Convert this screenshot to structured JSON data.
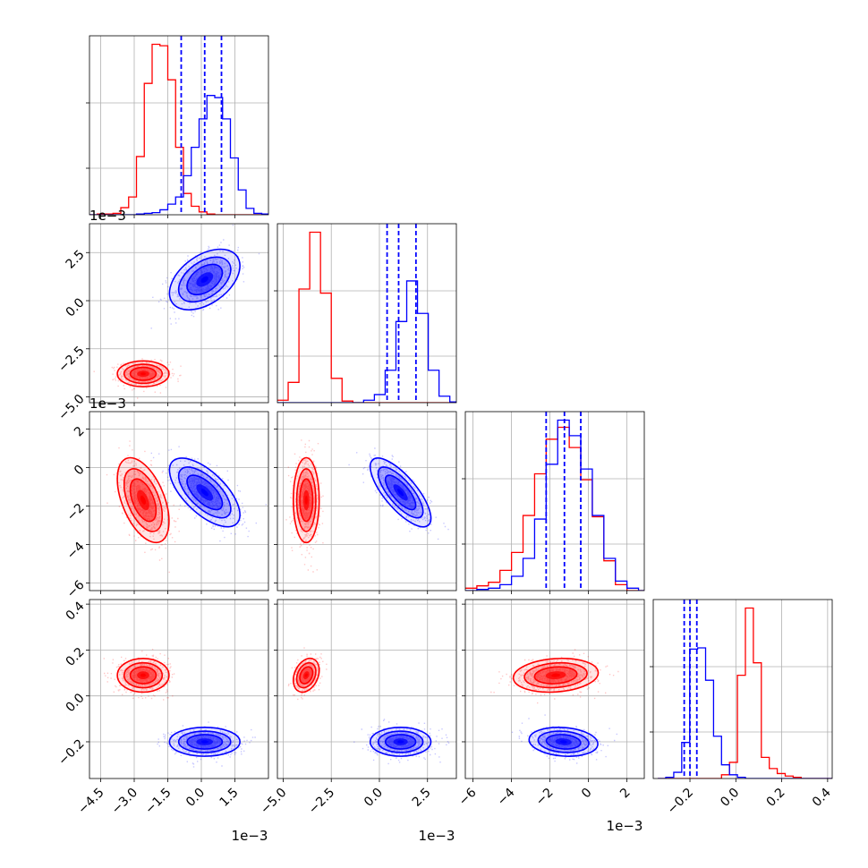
{
  "figure": {
    "type": "corner",
    "offset_texts": {
      "x0": "1e−3",
      "x1": "1e−3",
      "x2": "1e−3",
      "y1": "1e−3",
      "y2": "1e−3"
    },
    "grid": true,
    "marker_line_style": "dashed"
  },
  "colors": {
    "a": "#ff0000",
    "b": "#0000ff"
  },
  "chart_data": {
    "type": "corner",
    "parameters": [
      {
        "index": 0,
        "range": [
          -5.0,
          3.0
        ],
        "ticks": [
          -4.5,
          -3.0,
          -1.5,
          0.0,
          1.5
        ],
        "tick_labels": [
          "−4.5",
          "−3.0",
          "−1.5",
          "0.0",
          "1.5"
        ],
        "offset": "1e−3"
      },
      {
        "index": 1,
        "range": [
          -5.3,
          4.0
        ],
        "ticks": [
          -5.0,
          -2.5,
          0.0,
          2.5
        ],
        "tick_labels": [
          "−5.0",
          "−2.5",
          "0.0",
          "2.5"
        ],
        "offset": "1e−3"
      },
      {
        "index": 2,
        "range": [
          -6.4,
          2.9
        ],
        "ticks": [
          -6,
          -4,
          -2,
          0,
          2
        ],
        "tick_labels": [
          "−6",
          "−4",
          "−2",
          "0",
          "2"
        ],
        "offset": "1e−3"
      },
      {
        "index": 3,
        "range": [
          -0.36,
          0.42
        ],
        "ticks": [
          -0.2,
          0.0,
          0.2,
          0.4
        ],
        "tick_labels": [
          "−0.2",
          "0.0",
          "0.2",
          "0.4"
        ]
      }
    ],
    "series": [
      {
        "color": "#ff0000",
        "mean": [
          -2.6,
          -3.8,
          -1.7,
          0.09
        ],
        "std": [
          0.55,
          0.32,
          1.05,
          0.035
        ],
        "markers": null
      },
      {
        "color": "#0000ff",
        "mean": [
          0.15,
          1.1,
          -1.3,
          -0.2
        ],
        "std": [
          0.75,
          0.75,
          0.85,
          0.03
        ],
        "markers": [
          [
            -0.9,
            0.15,
            0.9
          ],
          [
            0.4,
            1.0,
            1.9
          ],
          [
            -2.2,
            -1.25,
            -0.4
          ],
          [
            -0.225,
            -0.2,
            -0.17
          ]
        ]
      }
    ],
    "correlations": {
      "0-1": [
        0.0,
        0.45
      ],
      "0-2": [
        -0.5,
        -0.65
      ],
      "1-2": [
        0.0,
        -0.75
      ],
      "0-3": [
        0.0,
        0.0
      ],
      "1-3": [
        0.3,
        0.0
      ],
      "2-3": [
        0.15,
        -0.15
      ]
    },
    "diagonal": [
      {
        "index": 0,
        "bins": {
          "start": -5.0,
          "width": 0.35
        },
        "a": [
          0,
          1,
          1,
          2,
          10,
          25,
          82,
          185,
          240,
          238,
          190,
          95,
          30,
          12,
          4,
          1,
          0,
          0,
          0,
          0,
          0,
          0,
          0
        ],
        "b": [
          0,
          0,
          0,
          0,
          0,
          0,
          1,
          2,
          3,
          7,
          15,
          25,
          55,
          95,
          135,
          168,
          165,
          135,
          80,
          35,
          9,
          2,
          1
        ]
      },
      {
        "index": 1,
        "bins": {
          "start": -5.3,
          "width": 0.56
        },
        "a": [
          3,
          25,
          140,
          210,
          135,
          30,
          2,
          0,
          0,
          0,
          0,
          0,
          0,
          0,
          0,
          0,
          0
        ],
        "b": [
          0,
          0,
          0,
          0,
          0,
          0,
          0,
          0,
          3,
          10,
          40,
          100,
          150,
          110,
          40,
          8,
          1
        ]
      },
      {
        "index": 2,
        "bins": {
          "start": -6.4,
          "width": 0.6
        },
        "a": [
          2,
          4,
          7,
          17,
          32,
          63,
          98,
          127,
          137,
          120,
          93,
          62,
          25,
          5,
          0,
          0
        ],
        "b": [
          0,
          1,
          2,
          5,
          12,
          27,
          60,
          106,
          143,
          130,
          102,
          63,
          27,
          8,
          2,
          0
        ]
      },
      {
        "index": 3,
        "bins": {
          "start": -0.34,
          "width": 0.0347
        },
        "a": [
          0,
          0,
          0,
          0,
          0,
          0,
          0,
          0,
          3,
          13,
          83,
          137,
          93,
          17,
          8,
          4,
          2,
          1,
          0,
          0,
          0,
          0
        ],
        "b": [
          0,
          1,
          5,
          29,
          104,
          105,
          79,
          34,
          11,
          3,
          1,
          0,
          0,
          0,
          0,
          0,
          0,
          0,
          0,
          0,
          0,
          0
        ]
      }
    ]
  }
}
